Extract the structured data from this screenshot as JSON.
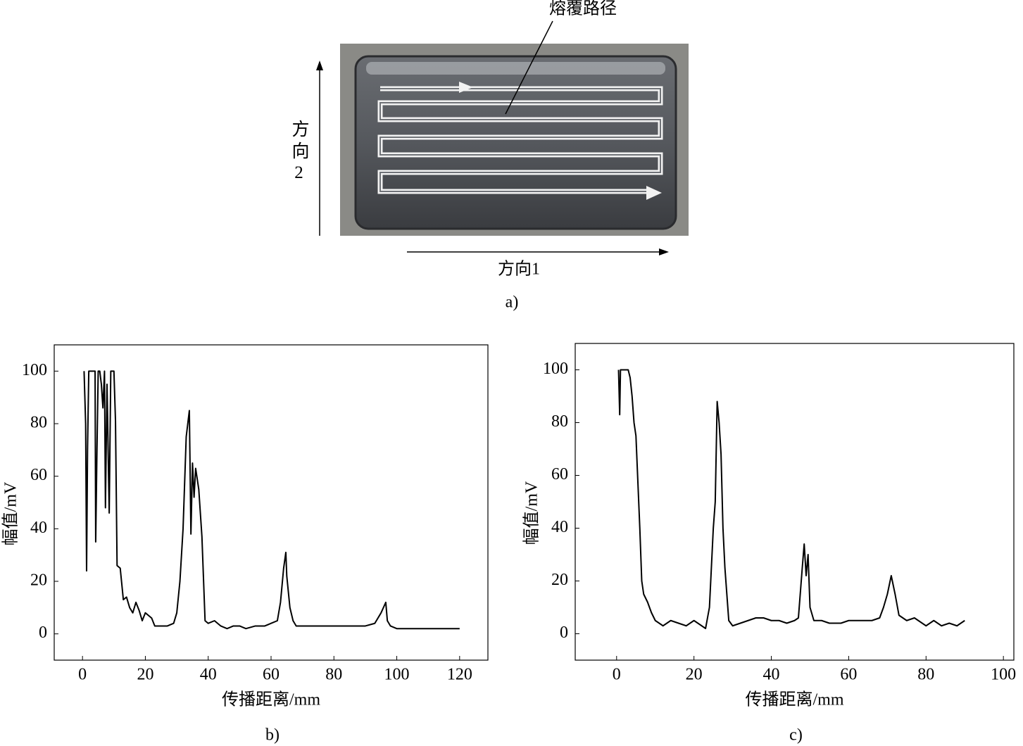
{
  "figure_a": {
    "path_label": "熔覆路径",
    "direction2": "方向2",
    "direction1": "方向1",
    "caption": "a)"
  },
  "chart_data": [
    {
      "type": "line",
      "caption": "b)",
      "xlabel": "传播距离/mm",
      "ylabel": "幅值/mV",
      "color": "#000000",
      "xlim": [
        -9,
        129
      ],
      "ylim": [
        -10,
        110
      ],
      "xticks": [
        0,
        20,
        40,
        60,
        80,
        100,
        120
      ],
      "yticks": [
        0,
        20,
        40,
        60,
        80,
        100
      ],
      "x": [
        0.5,
        1,
        1.3,
        1.6,
        2,
        3,
        4,
        4.2,
        4.6,
        5,
        5.5,
        6,
        6.5,
        7,
        7.3,
        7.8,
        8.5,
        9,
        10,
        10.5,
        11,
        12,
        13,
        14,
        15,
        16,
        17,
        18,
        19,
        20,
        21,
        22,
        23,
        25,
        27,
        29,
        30,
        31,
        32,
        33,
        34,
        34.5,
        35,
        35.5,
        36,
        37,
        38,
        39,
        40,
        42,
        44,
        46,
        48,
        50,
        52,
        55,
        58,
        60,
        62,
        63,
        64,
        64.7,
        65,
        66,
        67,
        68,
        70,
        75,
        80,
        85,
        90,
        93,
        95,
        96.5,
        97,
        98,
        100,
        105,
        110,
        115,
        120
      ],
      "values": [
        100,
        80,
        24,
        70,
        100,
        100,
        100,
        35,
        70,
        100,
        100,
        95,
        86,
        100,
        48,
        95,
        46,
        100,
        100,
        81,
        26,
        25,
        13,
        14,
        10,
        8,
        12,
        9,
        5,
        8,
        7,
        6,
        3,
        3,
        3,
        4,
        8,
        20,
        40,
        75,
        85,
        38,
        65,
        52,
        63,
        55,
        37,
        5,
        4,
        5,
        3,
        2,
        3,
        3,
        2,
        3,
        3,
        4,
        5,
        12,
        25,
        31,
        22,
        10,
        5,
        3,
        3,
        3,
        3,
        3,
        3,
        4,
        8,
        12,
        5,
        3,
        2,
        2,
        2,
        2,
        2
      ]
    },
    {
      "type": "line",
      "caption": "c)",
      "xlabel": "传播距离/mm",
      "ylabel": "幅值/mV",
      "color": "#000000",
      "xlim": [
        -10.7,
        102.7
      ],
      "ylim": [
        -10,
        110
      ],
      "xticks": [
        0,
        20,
        40,
        60,
        80,
        100
      ],
      "yticks": [
        0,
        20,
        40,
        60,
        80,
        100
      ],
      "x": [
        0.5,
        0.8,
        1,
        2,
        3,
        3.5,
        4,
        4.5,
        5,
        6,
        6.5,
        7,
        8,
        9,
        10,
        12,
        14,
        16,
        18,
        20,
        22,
        23,
        24,
        25,
        25.5,
        26,
        26.5,
        27,
        27.5,
        28,
        29,
        30,
        32,
        34,
        36,
        38,
        40,
        42,
        44,
        46,
        47,
        48,
        48.5,
        49,
        49.5,
        50,
        51,
        53,
        55,
        58,
        60,
        63,
        66,
        68,
        69,
        70,
        71,
        72,
        73,
        75,
        77,
        80,
        82,
        84,
        86,
        88,
        90
      ],
      "values": [
        100,
        83,
        100,
        100,
        100,
        97,
        90,
        80,
        75,
        40,
        20,
        15,
        12,
        8,
        5,
        3,
        5,
        4,
        3,
        5,
        3,
        2,
        10,
        40,
        50,
        88,
        80,
        68,
        40,
        25,
        5,
        3,
        4,
        5,
        6,
        6,
        5,
        5,
        4,
        5,
        6,
        25,
        34,
        22,
        30,
        10,
        5,
        5,
        4,
        4,
        5,
        5,
        5,
        6,
        10,
        15,
        22,
        15,
        7,
        5,
        6,
        3,
        5,
        3,
        4,
        3,
        5
      ]
    }
  ]
}
